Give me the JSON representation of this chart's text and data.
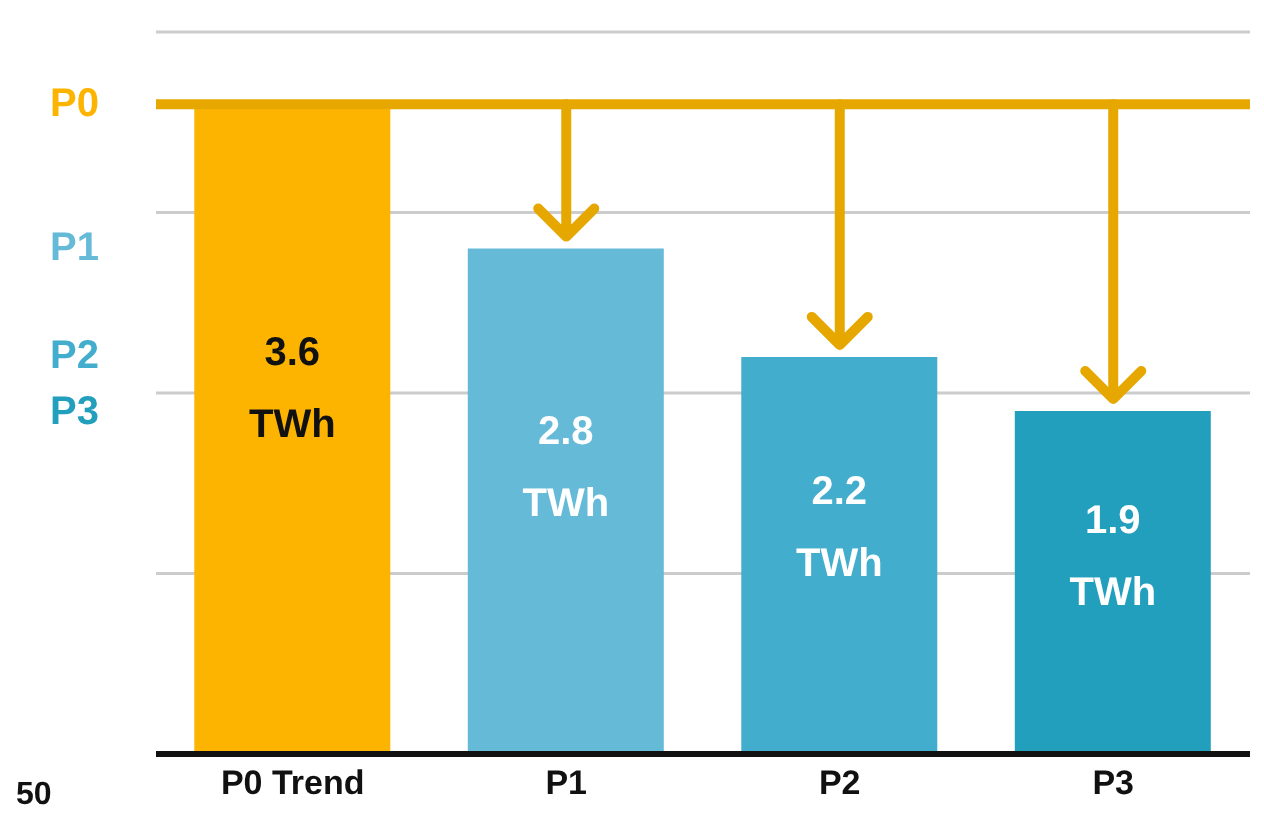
{
  "chart_data": {
    "type": "bar",
    "categories": [
      "P0 Trend",
      "P1",
      "P2",
      "P3"
    ],
    "values": [
      3.6,
      2.8,
      2.2,
      1.9
    ],
    "colors": [
      "#fdb400",
      "#65bad8",
      "#42adcc",
      "#229fbd"
    ],
    "value_labels": [
      "3.6 TWh",
      "2.8 TWh",
      "2.2 TWh",
      "1.9 TWh"
    ],
    "ylim": [
      0,
      4
    ],
    "yticks": [
      {
        "value": 0,
        "label": null
      },
      {
        "value": 1,
        "label": null
      },
      {
        "value": 2,
        "label": null
      },
      {
        "value": 3,
        "label": null
      },
      {
        "value": 4,
        "label": null
      }
    ],
    "grid": "y",
    "ref_lines": [
      {
        "axis": "y",
        "value": 3.6,
        "color": "#e6a800"
      }
    ],
    "annotations": [
      "P0",
      "P1",
      "P2",
      "P3",
      "50"
    ]
  }
}
